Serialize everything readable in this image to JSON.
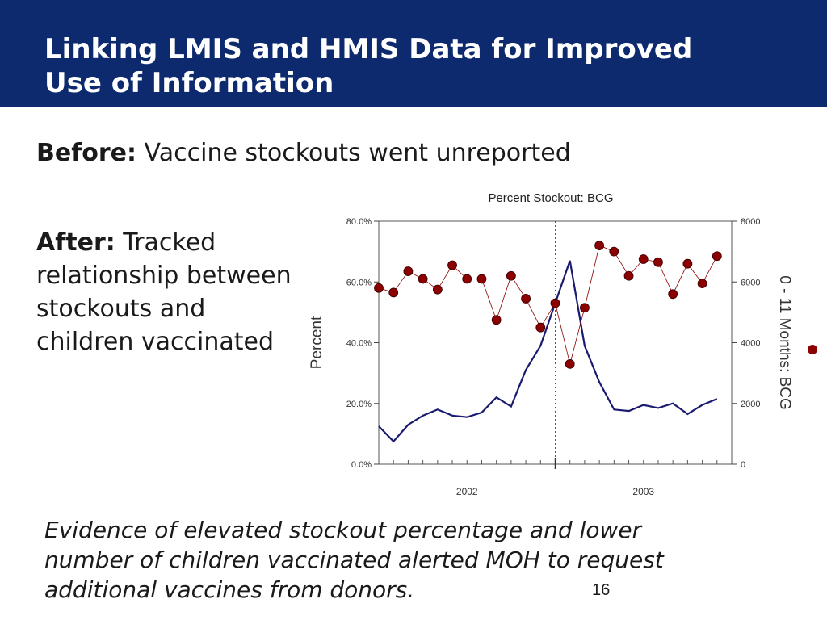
{
  "slide": {
    "title_line1": "Linking LMIS and HMIS Data for Improved",
    "title_line2": "Use of Information",
    "before_label": "Before:",
    "before_text": " Vaccine stockouts went unreported",
    "after_label": "After:",
    "after_text": " Tracked relationship between stockouts and children vaccinated",
    "evidence_line1": "Evidence of elevated stockout percentage and lower",
    "evidence_line2": "number of children vaccinated alerted MOH to request",
    "evidence_line3": "additional vaccines from donors.",
    "page_number": "16"
  },
  "chart_data": {
    "type": "line",
    "title": "Percent Stockout: BCG",
    "ylabel": "Percent",
    "y2label": "0 - 11 Months: BCG",
    "x_ticks": [
      "2002",
      "2003"
    ],
    "ylim": [
      0,
      80
    ],
    "y_ticks": [
      "0.0%",
      "20.0%",
      "40.0%",
      "60.0%",
      "80.0%"
    ],
    "y2lim": [
      0,
      8000
    ],
    "y2_ticks": [
      "0",
      "2000",
      "4000",
      "6000",
      "8000"
    ],
    "grid": "dotted major ticks",
    "legend": "none",
    "colors": {
      "stockout": "#8b0000",
      "vaccinated": "#1a1a6e"
    },
    "series": [
      {
        "axis": "left",
        "marker": "circle",
        "values": [
          58,
          56.5,
          63.5,
          61,
          57.5,
          65.5,
          61,
          61,
          47.5,
          62,
          54.5,
          45,
          53,
          33,
          51.5,
          72,
          70,
          62,
          67.5,
          66.5,
          56,
          66,
          59.5,
          68.5
        ]
      },
      {
        "axis": "right",
        "marker": "none",
        "values": [
          1250,
          750,
          1300,
          1600,
          1800,
          1600,
          1550,
          1700,
          2200,
          1900,
          3100,
          3900,
          5300,
          6700,
          3900,
          2700,
          1800,
          1750,
          1950,
          1850,
          2000,
          1650,
          1950,
          2150
        ]
      }
    ]
  }
}
